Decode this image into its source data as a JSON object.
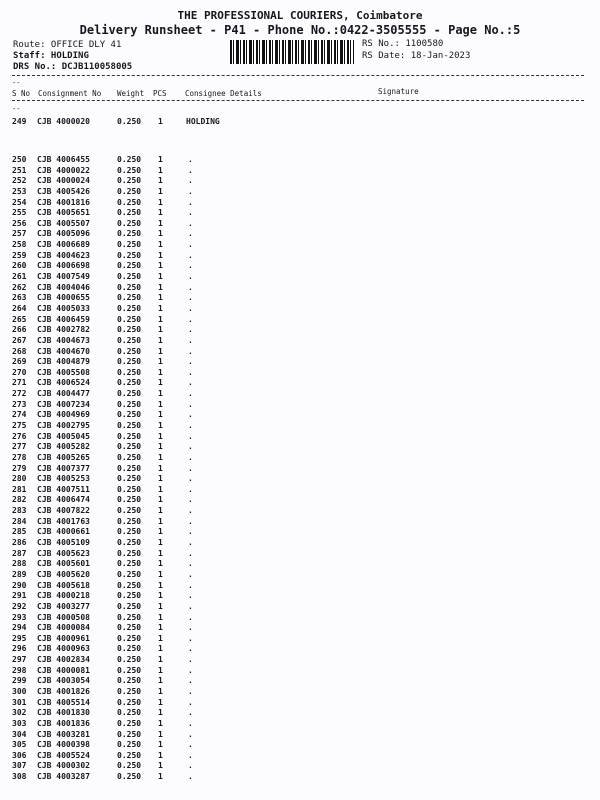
{
  "header": {
    "company": "THE PROFESSIONAL COURIERS, Coimbatore",
    "subtitle": "Delivery Runsheet - P41 - Phone No.:0422-3505555 - Page No.:5",
    "route": "Route: OFFICE DLY 41",
    "staff": "Staff: HOLDING",
    "drs_no": "DRS No.: DCJB110058005",
    "rs_no": "RS No.: 1100580",
    "rs_date": "RS Date: 18-Jan-2023"
  },
  "columns": {
    "sno": "S No",
    "consignment": "Consignment No",
    "weight": "Weight",
    "pcs": "PCS",
    "consignee": "Consignee Details",
    "signature": "Signature",
    "dash_mark": "--"
  },
  "first_row": {
    "sno": "249",
    "consignment": "CJB 4000020",
    "weight": "0.250",
    "pcs": "1",
    "consignee": "HOLDING"
  },
  "rows": [
    [
      "250",
      "CJB 4006455"
    ],
    [
      "251",
      "CJB 4000022"
    ],
    [
      "252",
      "CJB 4000024"
    ],
    [
      "253",
      "CJB 4005426"
    ],
    [
      "254",
      "CJB 4001816"
    ],
    [
      "255",
      "CJB 4005651"
    ],
    [
      "256",
      "CJB 4005507"
    ],
    [
      "257",
      "CJB 4005096"
    ],
    [
      "258",
      "CJB 4006689"
    ],
    [
      "259",
      "CJB 4004623"
    ],
    [
      "260",
      "CJB 4006698"
    ],
    [
      "261",
      "CJB 4007549"
    ],
    [
      "262",
      "CJB 4004046"
    ],
    [
      "263",
      "CJB 4000655"
    ],
    [
      "264",
      "CJB 4005033"
    ],
    [
      "265",
      "CJB 4006459"
    ],
    [
      "266",
      "CJB 4002782"
    ],
    [
      "267",
      "CJB 4004673"
    ],
    [
      "268",
      "CJB 4004670"
    ],
    [
      "269",
      "CJB 4004879"
    ],
    [
      "270",
      "CJB 4005508"
    ],
    [
      "271",
      "CJB 4006524"
    ],
    [
      "272",
      "CJB 4004477"
    ],
    [
      "273",
      "CJB 4007234"
    ],
    [
      "274",
      "CJB 4004969"
    ],
    [
      "275",
      "CJB 4002795"
    ],
    [
      "276",
      "CJB 4005045"
    ],
    [
      "277",
      "CJB 4005282"
    ],
    [
      "278",
      "CJB 4005265"
    ],
    [
      "279",
      "CJB 4007377"
    ],
    [
      "280",
      "CJB 4005253"
    ],
    [
      "281",
      "CJB 4007511"
    ],
    [
      "282",
      "CJB 4006474"
    ],
    [
      "283",
      "CJB 4007822"
    ],
    [
      "284",
      "CJB 4001763"
    ],
    [
      "285",
      "CJB 4000661"
    ],
    [
      "286",
      "CJB 4005109"
    ],
    [
      "287",
      "CJB 4005623"
    ],
    [
      "288",
      "CJB 4005601"
    ],
    [
      "289",
      "CJB 4005620"
    ],
    [
      "290",
      "CJB 4005618"
    ],
    [
      "291",
      "CJB 4000218"
    ],
    [
      "292",
      "CJB 4003277"
    ],
    [
      "293",
      "CJB 4000508"
    ],
    [
      "294",
      "CJB 4000084"
    ],
    [
      "295",
      "CJB 4000961"
    ],
    [
      "296",
      "CJB 4000963"
    ],
    [
      "297",
      "CJB 4002834"
    ],
    [
      "298",
      "CJB 4000081"
    ],
    [
      "299",
      "CJB 4003054"
    ],
    [
      "300",
      "CJB 4001826"
    ],
    [
      "301",
      "CJB 4005514"
    ],
    [
      "302",
      "CJB 4001830"
    ],
    [
      "303",
      "CJB 4001836"
    ],
    [
      "304",
      "CJB 4003281"
    ],
    [
      "305",
      "CJB 4000398"
    ],
    [
      "306",
      "CJB 4005524"
    ],
    [
      "307",
      "CJB 4000302"
    ],
    [
      "308",
      "CJB 4003287"
    ]
  ],
  "row_defaults": {
    "weight": "0.250",
    "pcs": "1",
    "consignee": "."
  }
}
